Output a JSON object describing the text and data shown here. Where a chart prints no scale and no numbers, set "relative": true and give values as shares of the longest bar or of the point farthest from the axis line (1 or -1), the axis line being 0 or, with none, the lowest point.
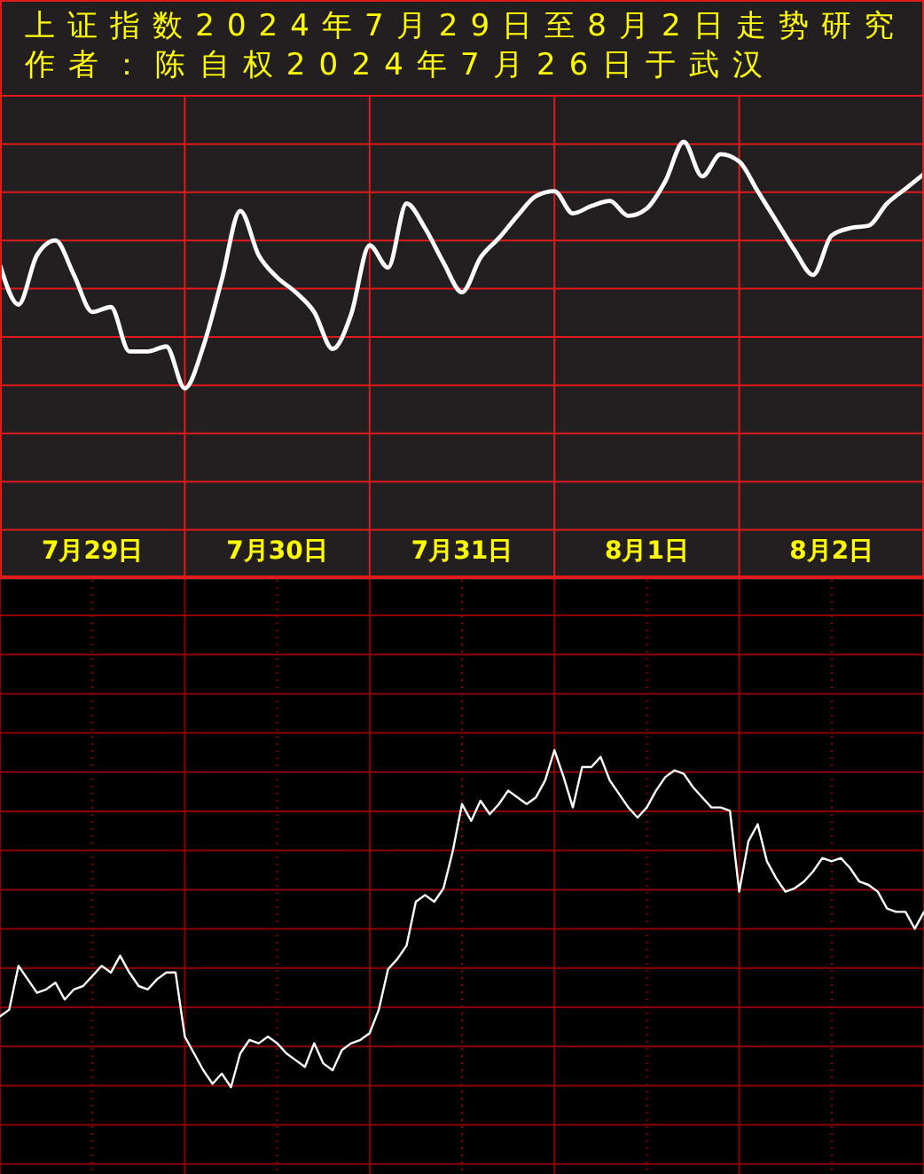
{
  "chart_data": [
    {
      "type": "line",
      "title": "上证指数2024年7月29日至8月2日走势研究",
      "subtitle": "作者：陈自权2024年7月26日于武汉",
      "relative": true,
      "categories": [
        null,
        null,
        null,
        null,
        null,
        "7月29日",
        null,
        null,
        null,
        null,
        null,
        null,
        null,
        null,
        null,
        "7月30日",
        null,
        null,
        null,
        null,
        null,
        null,
        null,
        null,
        null,
        "7月31日",
        null,
        null,
        null,
        null,
        null,
        null,
        null,
        null,
        null,
        "8月1日",
        null,
        null,
        null,
        null,
        null,
        null,
        null,
        null,
        null,
        "8月2日",
        null,
        null,
        null,
        null,
        null
      ],
      "tick_labels": "x",
      "grid": true,
      "series": [
        {
          "color": "#ffffff",
          "values": [
            0.5,
            0.34,
            0.54,
            0.6,
            0.46,
            0.31,
            0.33,
            0.15,
            0.15,
            0.17,
            0,
            0.17,
            0.44,
            0.72,
            0.54,
            0.45,
            0.39,
            0.31,
            0.16,
            0.3,
            0.58,
            0.49,
            0.75,
            0.65,
            0.51,
            0.39,
            0.53,
            0.61,
            0.7,
            0.78,
            0.8,
            0.71,
            0.74,
            0.76,
            0.7,
            0.73,
            0.84,
            1,
            0.86,
            0.95,
            0.92,
            0.8,
            0.68,
            0.56,
            0.46,
            0.62,
            0.65,
            0.66,
            0.75,
            0.81,
            0.87
          ]
        }
      ]
    },
    {
      "type": "line",
      "relative": true,
      "categories": [
        null,
        null,
        null,
        null,
        null,
        null,
        null,
        null,
        null,
        null,
        null,
        null,
        null,
        null,
        null,
        null,
        null,
        null,
        null,
        null,
        null,
        null,
        null,
        null,
        null,
        null,
        null,
        null,
        null,
        null,
        null,
        null,
        null,
        null,
        null,
        null,
        null,
        null,
        null,
        null,
        null,
        null,
        null,
        null,
        null,
        null,
        null,
        null,
        null,
        null,
        null,
        null,
        null,
        null,
        null,
        null,
        null,
        null,
        null,
        null,
        null,
        null,
        null,
        null,
        null,
        null,
        null,
        null,
        null,
        null,
        null,
        null,
        null,
        null,
        null,
        null,
        null,
        null,
        null,
        null,
        null,
        null,
        null,
        null,
        null,
        null,
        null,
        null,
        null,
        null,
        null,
        null,
        null,
        null,
        null,
        null,
        null,
        null,
        null,
        null,
        null
      ],
      "tick_labels": false,
      "grid": true,
      "series": [
        {
          "color": "#ffffff",
          "values": [
            0.21,
            0.23,
            0.36,
            0.32,
            0.28,
            0.29,
            0.31,
            0.26,
            0.29,
            0.3,
            0.33,
            0.36,
            0.34,
            0.39,
            0.34,
            0.3,
            0.29,
            0.32,
            0.34,
            0.34,
            0.15,
            0.1,
            0.05,
            0.01,
            0.04,
            0,
            0.1,
            0.14,
            0.13,
            0.15,
            0.13,
            0.1,
            0.08,
            0.06,
            0.13,
            0.07,
            0.05,
            0.11,
            0.13,
            0.14,
            0.16,
            0.23,
            0.35,
            0.38,
            0.42,
            0.55,
            0.57,
            0.55,
            0.59,
            0.7,
            0.84,
            0.79,
            0.85,
            0.81,
            0.84,
            0.88,
            0.86,
            0.84,
            0.86,
            0.91,
            1,
            0.92,
            0.83,
            0.95,
            0.95,
            0.98,
            0.91,
            0.87,
            0.83,
            0.8,
            0.83,
            0.88,
            0.92,
            0.94,
            0.93,
            0.89,
            0.86,
            0.83,
            0.83,
            0.82,
            0.58,
            0.73,
            0.78,
            0.67,
            0.62,
            0.58,
            0.59,
            0.61,
            0.64,
            0.68,
            0.67,
            0.68,
            0.65,
            0.61,
            0.6,
            0.58,
            0.53,
            0.52,
            0.52,
            0.47,
            0.52
          ]
        }
      ]
    }
  ]
}
